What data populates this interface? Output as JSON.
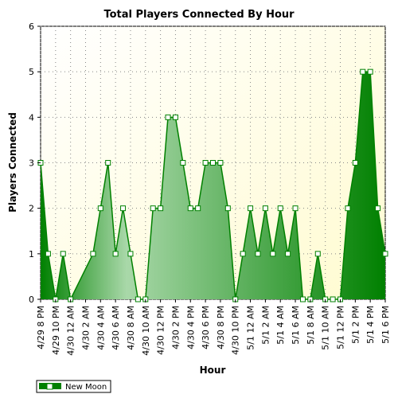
{
  "colors": {
    "plot_bg_light": "#ffffff",
    "plot_bg_yellow": "#fffbd0",
    "area_dark": "#008000",
    "area_light": "#a9d8a9",
    "line": "#008000",
    "marker_fill": "#ffffff",
    "grid": "#888888"
  },
  "chart_data": {
    "type": "area",
    "title": "Total Players Connected By Hour",
    "xlabel": "Hour",
    "ylabel": "Players Connected",
    "ylim": [
      0,
      6
    ],
    "yticks": [
      "0",
      "1",
      "2",
      "3",
      "4",
      "5",
      "6"
    ],
    "grid": true,
    "legend_position": "bottom-left",
    "x_tick_labels": [
      "4/29 8 PM",
      "4/29 10 PM",
      "4/30 12 AM",
      "4/30 2 AM",
      "4/30 4 AM",
      "4/30 6 AM",
      "4/30 8 AM",
      "4/30 10 AM",
      "4/30 12 PM",
      "4/30 2 PM",
      "4/30 4 PM",
      "4/30 6 PM",
      "4/30 8 PM",
      "4/30 10 PM",
      "5/1 12 AM",
      "5/1 2 AM",
      "5/1 4 AM",
      "5/1 6 AM",
      "5/1 8 AM",
      "5/1 10 AM",
      "5/1 12 PM",
      "5/1 2 PM",
      "5/1 4 PM",
      "5/1 6 PM"
    ],
    "series": [
      {
        "name": "New Moon",
        "values": [
          3,
          1,
          0,
          1,
          0,
          null,
          null,
          1,
          2,
          3,
          1,
          2,
          1,
          0,
          0,
          2,
          2,
          4,
          4,
          3,
          2,
          2,
          3,
          3,
          3,
          2,
          0,
          1,
          2,
          1,
          2,
          1,
          2,
          1,
          2,
          0,
          0,
          1,
          0,
          0,
          0,
          2,
          3,
          5,
          5,
          2,
          1
        ]
      }
    ]
  }
}
